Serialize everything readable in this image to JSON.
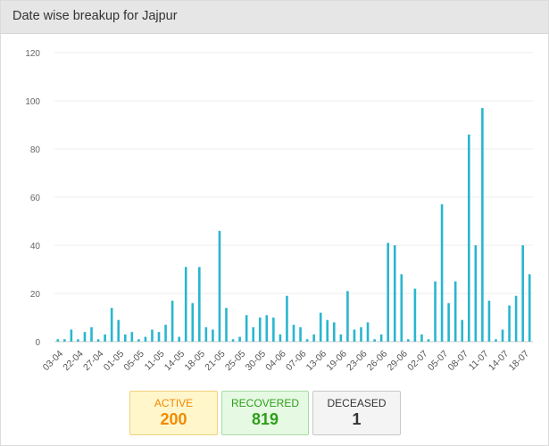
{
  "header": {
    "title": "Date wise breakup for Jajpur"
  },
  "chart_data": {
    "type": "bar",
    "title": "",
    "xlabel": "",
    "ylabel": "",
    "ylim": [
      0,
      120
    ],
    "y_ticks": [
      "0",
      "20",
      "40",
      "60",
      "80",
      "100",
      "120"
    ],
    "grid": true,
    "bar_color": "#29b6cf",
    "x_tick_labels": [
      "03-04",
      "22-04",
      "27-04",
      "01-05",
      "05-05",
      "11-05",
      "14-05",
      "18-05",
      "21-05",
      "25-05",
      "30-05",
      "04-06",
      "07-06",
      "13-06",
      "19-06",
      "23-06",
      "26-06",
      "29-06",
      "02-07",
      "05-07",
      "08-07",
      "11-07",
      "14-07",
      "18-07"
    ],
    "values": [
      1,
      1,
      5,
      1,
      4,
      6,
      1,
      3,
      14,
      9,
      3,
      4,
      1,
      2,
      5,
      4,
      7,
      17,
      2,
      31,
      16,
      31,
      6,
      5,
      46,
      14,
      1,
      2,
      11,
      6,
      10,
      11,
      10,
      3,
      19,
      7,
      6,
      1,
      3,
      12,
      9,
      8,
      3,
      21,
      5,
      6,
      8,
      1,
      3,
      41,
      40,
      28,
      1,
      22,
      3,
      1,
      25,
      57,
      16,
      25,
      9,
      86,
      40,
      97,
      17,
      1,
      5,
      15,
      19,
      40,
      28
    ]
  },
  "stats": {
    "active": {
      "label": "ACTIVE",
      "value": "200",
      "color": "#f08a00"
    },
    "recovered": {
      "label": "RECOVERED",
      "value": "819",
      "color": "#2f9e1b"
    },
    "deceased": {
      "label": "DECEASED",
      "value": "1",
      "color": "#333333"
    }
  }
}
